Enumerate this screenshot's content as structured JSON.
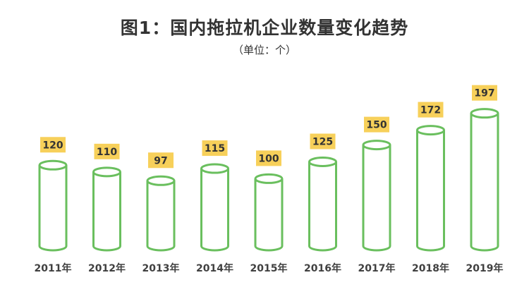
{
  "title": "图1：国内拖拉机企业数量变化趋势",
  "subtitle": "（单位：个）",
  "colors": {
    "cylinder_stroke": "#6abf5e",
    "label_bg": "#f7d05a",
    "label_text": "#333333",
    "axis_text": "#404040"
  },
  "chart_data": {
    "type": "bar",
    "title": "图1：国内拖拉机企业数量变化趋势",
    "subtitle": "（单位：个）",
    "categories": [
      "2011年",
      "2012年",
      "2013年",
      "2014年",
      "2015年",
      "2016年",
      "2017年",
      "2018年",
      "2019年"
    ],
    "values": [
      120,
      110,
      97,
      115,
      100,
      125,
      150,
      172,
      197
    ],
    "data_labels": [
      "120",
      "110",
      "97",
      "115",
      "100",
      "125",
      "150",
      "172",
      "197"
    ],
    "bar_style": "cylinder",
    "grid": false,
    "legend": "none"
  }
}
